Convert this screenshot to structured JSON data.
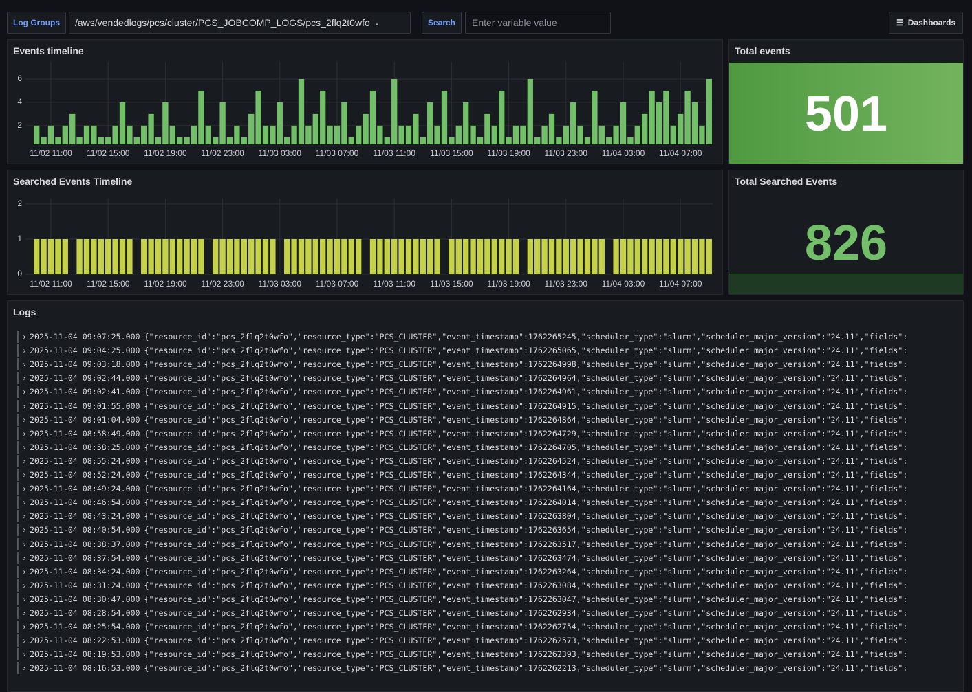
{
  "toolbar": {
    "log_groups_label": "Log Groups",
    "log_group": "/aws/vendedlogs/pcs/cluster/PCS_JOBCOMP_LOGS/pcs_2flq2t0wfo",
    "search_label": "Search",
    "search_placeholder": "Enter variable value",
    "dashboards": "Dashboards"
  },
  "chart_data": [
    {
      "type": "bar",
      "title": "Events timeline",
      "color": "#73bf69",
      "x": [
        "11/02 10:00",
        "11/02 10:30",
        "11/02 11:00",
        "11/02 11:30",
        "11/02 12:00",
        "11/02 12:30",
        "11/02 13:00",
        "11/02 13:30",
        "11/02 14:00",
        "11/02 14:30",
        "11/02 15:00",
        "11/02 15:30",
        "11/02 16:00",
        "11/02 16:30",
        "11/02 17:00",
        "11/02 17:30",
        "11/02 18:00",
        "11/02 18:30",
        "11/02 19:00",
        "11/02 19:30",
        "11/02 20:00",
        "11/02 20:30",
        "11/02 21:00",
        "11/02 21:30",
        "11/02 22:00",
        "11/02 22:30",
        "11/02 23:00",
        "11/02 23:30",
        "11/03 00:00",
        "11/03 00:30",
        "11/03 01:00",
        "11/03 01:30",
        "11/03 02:00",
        "11/03 02:30",
        "11/03 03:00",
        "11/03 03:30",
        "11/03 04:00",
        "11/03 04:30",
        "11/03 05:00",
        "11/03 05:30",
        "11/03 06:00",
        "11/03 06:30",
        "11/03 07:00",
        "11/03 07:30",
        "11/03 08:00",
        "11/03 08:30",
        "11/03 09:00",
        "11/03 09:30",
        "11/03 10:00",
        "11/03 10:30",
        "11/03 11:00",
        "11/03 11:30",
        "11/03 12:00",
        "11/03 12:30",
        "11/03 13:00",
        "11/03 13:30",
        "11/03 14:00",
        "11/03 14:30",
        "11/03 15:00",
        "11/03 15:30",
        "11/03 16:00",
        "11/03 16:30",
        "11/03 17:00",
        "11/03 17:30",
        "11/03 18:00",
        "11/03 18:30",
        "11/03 19:00",
        "11/03 19:30",
        "11/03 20:00",
        "11/03 20:30",
        "11/03 21:00",
        "11/03 21:30",
        "11/03 22:00",
        "11/03 22:30",
        "11/03 23:00",
        "11/03 23:30",
        "11/04 00:00",
        "11/04 00:30",
        "11/04 01:00",
        "11/04 01:30",
        "11/04 02:00",
        "11/04 02:30",
        "11/04 03:00",
        "11/04 03:30",
        "11/04 04:00",
        "11/04 04:30",
        "11/04 05:00",
        "11/04 05:30",
        "11/04 06:00",
        "11/04 06:30",
        "11/04 07:00",
        "11/04 07:30",
        "11/04 08:00",
        "11/04 08:30",
        "11/04 09:00"
      ],
      "values": [
        2,
        1,
        2,
        1,
        2,
        3,
        1,
        2,
        2,
        1,
        1,
        2,
        4,
        2,
        1,
        2,
        3,
        1,
        4,
        2,
        1,
        1,
        2,
        5,
        2,
        1,
        4,
        1,
        2,
        1,
        3,
        5,
        2,
        2,
        4,
        1,
        2,
        6,
        2,
        3,
        5,
        2,
        2,
        4,
        1,
        2,
        3,
        5,
        2,
        1,
        6,
        2,
        2,
        3,
        1,
        4,
        2,
        5,
        1,
        2,
        4,
        2,
        1,
        3,
        2,
        5,
        1,
        2,
        2,
        6,
        1,
        2,
        3,
        1,
        2,
        4,
        2,
        1,
        5,
        2,
        1,
        2,
        4,
        1,
        2,
        3,
        5,
        4,
        5,
        2,
        3,
        5,
        4,
        2,
        6
      ],
      "ylim": [
        0.4,
        7
      ],
      "yticks": [
        2,
        4,
        6
      ],
      "xticks": [
        "11/02 11:00",
        "11/02 15:00",
        "11/02 19:00",
        "11/02 23:00",
        "11/03 03:00",
        "11/03 07:00",
        "11/03 11:00",
        "11/03 15:00",
        "11/03 19:00",
        "11/03 23:00",
        "11/04 03:00",
        "11/04 07:00"
      ],
      "grid": true
    },
    {
      "type": "bar",
      "title": "Searched Events Timeline",
      "color": "#c5d146",
      "x": [
        "11/02 10:00",
        "11/02 10:30",
        "11/02 11:00",
        "11/02 11:30",
        "11/02 12:00",
        "11/02 12:30",
        "11/02 13:00",
        "11/02 13:30",
        "11/02 14:00",
        "11/02 14:30",
        "11/02 15:00",
        "11/02 15:30",
        "11/02 16:00",
        "11/02 16:30",
        "11/02 17:00",
        "11/02 17:30",
        "11/02 18:00",
        "11/02 18:30",
        "11/02 19:00",
        "11/02 19:30",
        "11/02 20:00",
        "11/02 20:30",
        "11/02 21:00",
        "11/02 21:30",
        "11/02 22:00",
        "11/02 22:30",
        "11/02 23:00",
        "11/02 23:30",
        "11/03 00:00",
        "11/03 00:30",
        "11/03 01:00",
        "11/03 01:30",
        "11/03 02:00",
        "11/03 02:30",
        "11/03 03:00",
        "11/03 03:30",
        "11/03 04:00",
        "11/03 04:30",
        "11/03 05:00",
        "11/03 05:30",
        "11/03 06:00",
        "11/03 06:30",
        "11/03 07:00",
        "11/03 07:30",
        "11/03 08:00",
        "11/03 08:30",
        "11/03 09:00",
        "11/03 09:30",
        "11/03 10:00",
        "11/03 10:30",
        "11/03 11:00",
        "11/03 11:30",
        "11/03 12:00",
        "11/03 12:30",
        "11/03 13:00",
        "11/03 13:30",
        "11/03 14:00",
        "11/03 14:30",
        "11/03 15:00",
        "11/03 15:30",
        "11/03 16:00",
        "11/03 16:30",
        "11/03 17:00",
        "11/03 17:30",
        "11/03 18:00",
        "11/03 18:30",
        "11/03 19:00",
        "11/03 19:30",
        "11/03 20:00",
        "11/03 20:30",
        "11/03 21:00",
        "11/03 21:30",
        "11/03 22:00",
        "11/03 22:30",
        "11/03 23:00",
        "11/03 23:30",
        "11/04 00:00",
        "11/04 00:30",
        "11/04 01:00",
        "11/04 01:30",
        "11/04 02:00",
        "11/04 02:30",
        "11/04 03:00",
        "11/04 03:30",
        "11/04 04:00",
        "11/04 04:30",
        "11/04 05:00",
        "11/04 05:30",
        "11/04 06:00",
        "11/04 06:30",
        "11/04 07:00",
        "11/04 07:30",
        "11/04 08:00",
        "11/04 08:30",
        "11/04 09:00"
      ],
      "values": [
        1,
        1,
        1,
        1,
        1,
        0,
        1,
        1,
        1,
        1,
        1,
        1,
        1,
        1,
        0,
        1,
        1,
        1,
        1,
        1,
        1,
        1,
        1,
        1,
        0,
        1,
        1,
        1,
        1,
        1,
        1,
        1,
        1,
        1,
        0,
        1,
        1,
        1,
        1,
        1,
        1,
        1,
        1,
        1,
        1,
        1,
        0,
        1,
        1,
        1,
        1,
        1,
        1,
        1,
        1,
        1,
        1,
        0,
        1,
        1,
        1,
        1,
        1,
        1,
        1,
        1,
        1,
        1,
        0,
        1,
        1,
        1,
        1,
        1,
        1,
        1,
        1,
        1,
        1,
        1,
        0,
        1,
        1,
        1,
        1,
        1,
        1,
        1,
        1,
        1,
        1,
        1,
        1,
        1,
        1
      ],
      "ylim": [
        0,
        2
      ],
      "yticks": [
        0,
        1,
        2
      ],
      "xticks": [
        "11/02 11:00",
        "11/02 15:00",
        "11/02 19:00",
        "11/02 23:00",
        "11/03 03:00",
        "11/03 07:00",
        "11/03 11:00",
        "11/03 15:00",
        "11/03 19:00",
        "11/03 23:00",
        "11/04 03:00",
        "11/04 07:00"
      ],
      "grid": true
    }
  ],
  "stats": [
    {
      "title": "Total events",
      "value": 501
    },
    {
      "title": "Total Searched Events",
      "value": 826
    }
  ],
  "logs": {
    "title": "Logs",
    "rows": [
      {
        "time": "2025-11-04 09:07:25.000",
        "message": "{\"resource_id\":\"pcs_2flq2t0wfo\",\"resource_type\":\"PCS_CLUSTER\",\"event_timestamp\":1762265245,\"scheduler_type\":\"slurm\",\"scheduler_major_version\":\"24.11\",\"fields\":"
      },
      {
        "time": "2025-11-04 09:04:25.000",
        "message": "{\"resource_id\":\"pcs_2flq2t0wfo\",\"resource_type\":\"PCS_CLUSTER\",\"event_timestamp\":1762265065,\"scheduler_type\":\"slurm\",\"scheduler_major_version\":\"24.11\",\"fields\":"
      },
      {
        "time": "2025-11-04 09:03:18.000",
        "message": "{\"resource_id\":\"pcs_2flq2t0wfo\",\"resource_type\":\"PCS_CLUSTER\",\"event_timestamp\":1762264998,\"scheduler_type\":\"slurm\",\"scheduler_major_version\":\"24.11\",\"fields\":"
      },
      {
        "time": "2025-11-04 09:02:44.000",
        "message": "{\"resource_id\":\"pcs_2flq2t0wfo\",\"resource_type\":\"PCS_CLUSTER\",\"event_timestamp\":1762264964,\"scheduler_type\":\"slurm\",\"scheduler_major_version\":\"24.11\",\"fields\":"
      },
      {
        "time": "2025-11-04 09:02:41.000",
        "message": "{\"resource_id\":\"pcs_2flq2t0wfo\",\"resource_type\":\"PCS_CLUSTER\",\"event_timestamp\":1762264961,\"scheduler_type\":\"slurm\",\"scheduler_major_version\":\"24.11\",\"fields\":"
      },
      {
        "time": "2025-11-04 09:01:55.000",
        "message": "{\"resource_id\":\"pcs_2flq2t0wfo\",\"resource_type\":\"PCS_CLUSTER\",\"event_timestamp\":1762264915,\"scheduler_type\":\"slurm\",\"scheduler_major_version\":\"24.11\",\"fields\":"
      },
      {
        "time": "2025-11-04 09:01:04.000",
        "message": "{\"resource_id\":\"pcs_2flq2t0wfo\",\"resource_type\":\"PCS_CLUSTER\",\"event_timestamp\":1762264864,\"scheduler_type\":\"slurm\",\"scheduler_major_version\":\"24.11\",\"fields\":"
      },
      {
        "time": "2025-11-04 08:58:49.000",
        "message": "{\"resource_id\":\"pcs_2flq2t0wfo\",\"resource_type\":\"PCS_CLUSTER\",\"event_timestamp\":1762264729,\"scheduler_type\":\"slurm\",\"scheduler_major_version\":\"24.11\",\"fields\":"
      },
      {
        "time": "2025-11-04 08:58:25.000",
        "message": "{\"resource_id\":\"pcs_2flq2t0wfo\",\"resource_type\":\"PCS_CLUSTER\",\"event_timestamp\":1762264705,\"scheduler_type\":\"slurm\",\"scheduler_major_version\":\"24.11\",\"fields\":"
      },
      {
        "time": "2025-11-04 08:55:24.000",
        "message": "{\"resource_id\":\"pcs_2flq2t0wfo\",\"resource_type\":\"PCS_CLUSTER\",\"event_timestamp\":1762264524,\"scheduler_type\":\"slurm\",\"scheduler_major_version\":\"24.11\",\"fields\":"
      },
      {
        "time": "2025-11-04 08:52:24.000",
        "message": "{\"resource_id\":\"pcs_2flq2t0wfo\",\"resource_type\":\"PCS_CLUSTER\",\"event_timestamp\":1762264344,\"scheduler_type\":\"slurm\",\"scheduler_major_version\":\"24.11\",\"fields\":"
      },
      {
        "time": "2025-11-04 08:49:24.000",
        "message": "{\"resource_id\":\"pcs_2flq2t0wfo\",\"resource_type\":\"PCS_CLUSTER\",\"event_timestamp\":1762264164,\"scheduler_type\":\"slurm\",\"scheduler_major_version\":\"24.11\",\"fields\":"
      },
      {
        "time": "2025-11-04 08:46:54.000",
        "message": "{\"resource_id\":\"pcs_2flq2t0wfo\",\"resource_type\":\"PCS_CLUSTER\",\"event_timestamp\":1762264014,\"scheduler_type\":\"slurm\",\"scheduler_major_version\":\"24.11\",\"fields\":"
      },
      {
        "time": "2025-11-04 08:43:24.000",
        "message": "{\"resource_id\":\"pcs_2flq2t0wfo\",\"resource_type\":\"PCS_CLUSTER\",\"event_timestamp\":1762263804,\"scheduler_type\":\"slurm\",\"scheduler_major_version\":\"24.11\",\"fields\":"
      },
      {
        "time": "2025-11-04 08:40:54.000",
        "message": "{\"resource_id\":\"pcs_2flq2t0wfo\",\"resource_type\":\"PCS_CLUSTER\",\"event_timestamp\":1762263654,\"scheduler_type\":\"slurm\",\"scheduler_major_version\":\"24.11\",\"fields\":"
      },
      {
        "time": "2025-11-04 08:38:37.000",
        "message": "{\"resource_id\":\"pcs_2flq2t0wfo\",\"resource_type\":\"PCS_CLUSTER\",\"event_timestamp\":1762263517,\"scheduler_type\":\"slurm\",\"scheduler_major_version\":\"24.11\",\"fields\":"
      },
      {
        "time": "2025-11-04 08:37:54.000",
        "message": "{\"resource_id\":\"pcs_2flq2t0wfo\",\"resource_type\":\"PCS_CLUSTER\",\"event_timestamp\":1762263474,\"scheduler_type\":\"slurm\",\"scheduler_major_version\":\"24.11\",\"fields\":"
      },
      {
        "time": "2025-11-04 08:34:24.000",
        "message": "{\"resource_id\":\"pcs_2flq2t0wfo\",\"resource_type\":\"PCS_CLUSTER\",\"event_timestamp\":1762263264,\"scheduler_type\":\"slurm\",\"scheduler_major_version\":\"24.11\",\"fields\":"
      },
      {
        "time": "2025-11-04 08:31:24.000",
        "message": "{\"resource_id\":\"pcs_2flq2t0wfo\",\"resource_type\":\"PCS_CLUSTER\",\"event_timestamp\":1762263084,\"scheduler_type\":\"slurm\",\"scheduler_major_version\":\"24.11\",\"fields\":"
      },
      {
        "time": "2025-11-04 08:30:47.000",
        "message": "{\"resource_id\":\"pcs_2flq2t0wfo\",\"resource_type\":\"PCS_CLUSTER\",\"event_timestamp\":1762263047,\"scheduler_type\":\"slurm\",\"scheduler_major_version\":\"24.11\",\"fields\":"
      },
      {
        "time": "2025-11-04 08:28:54.000",
        "message": "{\"resource_id\":\"pcs_2flq2t0wfo\",\"resource_type\":\"PCS_CLUSTER\",\"event_timestamp\":1762262934,\"scheduler_type\":\"slurm\",\"scheduler_major_version\":\"24.11\",\"fields\":"
      },
      {
        "time": "2025-11-04 08:25:54.000",
        "message": "{\"resource_id\":\"pcs_2flq2t0wfo\",\"resource_type\":\"PCS_CLUSTER\",\"event_timestamp\":1762262754,\"scheduler_type\":\"slurm\",\"scheduler_major_version\":\"24.11\",\"fields\":"
      },
      {
        "time": "2025-11-04 08:22:53.000",
        "message": "{\"resource_id\":\"pcs_2flq2t0wfo\",\"resource_type\":\"PCS_CLUSTER\",\"event_timestamp\":1762262573,\"scheduler_type\":\"slurm\",\"scheduler_major_version\":\"24.11\",\"fields\":"
      },
      {
        "time": "2025-11-04 08:19:53.000",
        "message": "{\"resource_id\":\"pcs_2flq2t0wfo\",\"resource_type\":\"PCS_CLUSTER\",\"event_timestamp\":1762262393,\"scheduler_type\":\"slurm\",\"scheduler_major_version\":\"24.11\",\"fields\":"
      },
      {
        "time": "2025-11-04 08:16:53.000",
        "message": "{\"resource_id\":\"pcs_2flq2t0wfo\",\"resource_type\":\"PCS_CLUSTER\",\"event_timestamp\":1762262213,\"scheduler_type\":\"slurm\",\"scheduler_major_version\":\"24.11\",\"fields\":"
      }
    ]
  }
}
